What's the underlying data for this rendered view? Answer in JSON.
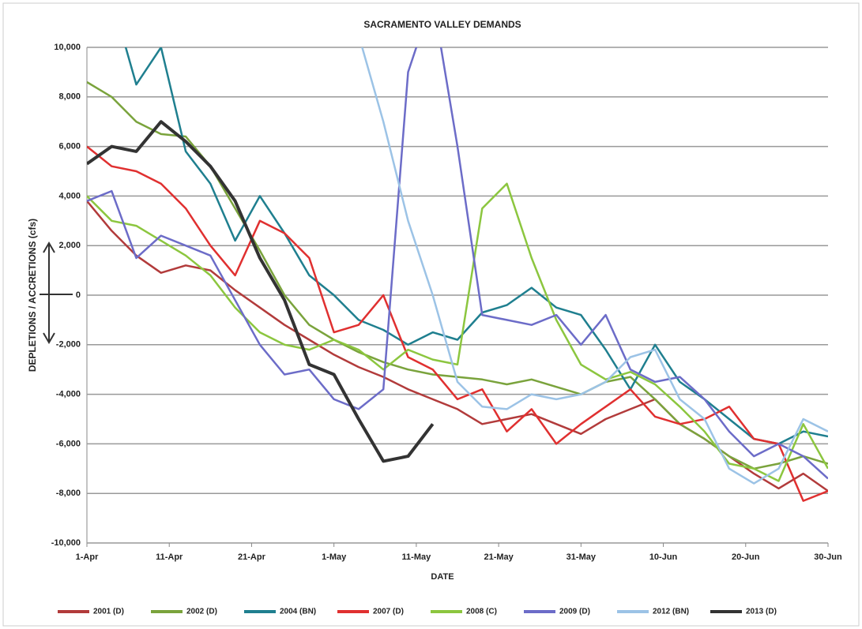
{
  "chart_data": {
    "type": "line",
    "title": "SACRAMENTO VALLEY DEMANDS",
    "xlabel": "DATE",
    "ylabel": "DEPLETIONS / ACCRETIONS (cfs)",
    "x": [
      0,
      3,
      6,
      9,
      12,
      15,
      18,
      21,
      24,
      27,
      30,
      33,
      36,
      39,
      42,
      45,
      48,
      51,
      54,
      57,
      60,
      63,
      66,
      69,
      72,
      75,
      78,
      81,
      84,
      87,
      90
    ],
    "xlim": [
      0,
      90
    ],
    "xticks": [
      {
        "value": 0,
        "label": "1-Apr"
      },
      {
        "value": 10,
        "label": "11-Apr"
      },
      {
        "value": 20,
        "label": "21-Apr"
      },
      {
        "value": 30,
        "label": "1-May"
      },
      {
        "value": 40,
        "label": "11-May"
      },
      {
        "value": 50,
        "label": "21-May"
      },
      {
        "value": 60,
        "label": "31-May"
      },
      {
        "value": 70,
        "label": "10-Jun"
      },
      {
        "value": 80,
        "label": "20-Jun"
      },
      {
        "value": 90,
        "label": "30-Jun"
      }
    ],
    "ylim": [
      -10000,
      10000
    ],
    "yticks": [
      {
        "value": -10000,
        "label": "-10,000"
      },
      {
        "value": -8000,
        "label": "-8,000"
      },
      {
        "value": -6000,
        "label": "-6,000"
      },
      {
        "value": -4000,
        "label": "-4,000"
      },
      {
        "value": -2000,
        "label": "-2,000"
      },
      0,
      {
        "value": 2000,
        "label": "2,000"
      },
      {
        "value": 4000,
        "label": "4,000"
      },
      {
        "value": 6000,
        "label": "6,000"
      },
      {
        "value": 8000,
        "label": "8,000"
      },
      {
        "value": 10000,
        "label": "10,000"
      }
    ],
    "grid": true,
    "legend": "bottom",
    "series": [
      {
        "name": "2001 (D)",
        "color": "#b23b3b",
        "values": [
          3800,
          2600,
          1600,
          900,
          1200,
          1000,
          200,
          -500,
          -1200,
          -1800,
          -2400,
          -2900,
          -3300,
          -3800,
          -4200,
          -4600,
          -5200,
          -5000,
          -4800,
          -5200,
          -5600,
          -5000,
          -4600,
          -4200,
          -5200,
          -5800,
          -6500,
          -7200,
          -7800,
          -7200,
          -7900
        ]
      },
      {
        "name": "2002 (D)",
        "color": "#7aa33c",
        "values": [
          8600,
          8000,
          7000,
          6500,
          6400,
          5200,
          3500,
          1800,
          0,
          -1200,
          -1800,
          -2300,
          -2700,
          -3000,
          -3200,
          -3300,
          -3400,
          -3600,
          -3400,
          -3700,
          -4000,
          -3500,
          -3300,
          -4200,
          -5200,
          -5800,
          -6500,
          -7000,
          -6800,
          -6500,
          -6800
        ]
      },
      {
        "name": "2004 (BN)",
        "color": "#1f7f8f",
        "values": [
          null,
          12000,
          8500,
          10000,
          5800,
          4500,
          2200,
          4000,
          2500,
          800,
          0,
          -1000,
          -1400,
          -2000,
          -1500,
          -1800,
          -700,
          -400,
          300,
          -500,
          -800,
          -2200,
          -3800,
          -2000,
          -3500,
          -4200,
          -5000,
          -5800,
          -6000,
          -5500,
          -5700
        ]
      },
      {
        "name": "2007 (D)",
        "color": "#e03030",
        "values": [
          6000,
          5200,
          5000,
          4500,
          3500,
          2000,
          800,
          3000,
          2500,
          1500,
          -1500,
          -1200,
          0,
          -2500,
          -3000,
          -4200,
          -3800,
          -5500,
          -4600,
          -6000,
          -5200,
          -4500,
          -3800,
          -4900,
          -5200,
          -5000,
          -4500,
          -5800,
          -6000,
          -8300,
          -7900
        ]
      },
      {
        "name": "2008 (C)",
        "color": "#8cc63f",
        "values": [
          4000,
          3000,
          2800,
          2200,
          1600,
          800,
          -500,
          -1500,
          -2000,
          -2200,
          -1800,
          -2200,
          -3000,
          -2200,
          -2600,
          -2800,
          3500,
          4500,
          1500,
          -1000,
          -2800,
          -3400,
          -3100,
          -3600,
          -4500,
          -5500,
          -6800,
          -7000,
          -7500,
          -5200,
          -7000
        ]
      },
      {
        "name": "2009 (D)",
        "color": "#6c6cc8",
        "values": [
          3800,
          4200,
          1500,
          2400,
          2000,
          1600,
          -200,
          -2000,
          -3200,
          -3000,
          -4200,
          -4600,
          -3800,
          9000,
          12000,
          6000,
          -800,
          -1000,
          -1200,
          -800,
          -2000,
          -800,
          -3000,
          -3500,
          -3300,
          -4200,
          -5500,
          -6500,
          -6000,
          -6500,
          -7400
        ]
      },
      {
        "name": "2012 (BN)",
        "color": "#9cc3e6",
        "values": [
          null,
          null,
          null,
          null,
          null,
          null,
          null,
          null,
          null,
          null,
          null,
          10500,
          7000,
          3000,
          0,
          -3500,
          -4500,
          -4600,
          -4000,
          -4200,
          -4000,
          -3500,
          -2500,
          -2200,
          -4200,
          -5000,
          -7000,
          -7600,
          -7000,
          -5000,
          -5500
        ]
      },
      {
        "name": "2013 (D)",
        "color": "#333333",
        "values": [
          5300,
          6000,
          5800,
          7000,
          6200,
          5200,
          3800,
          1500,
          -200,
          -2800,
          -3200,
          -5000,
          -6700,
          -6500,
          -5200,
          null,
          null,
          null,
          null,
          null,
          null,
          null,
          null,
          null,
          null,
          null,
          null,
          null,
          null,
          null,
          null
        ]
      }
    ]
  }
}
